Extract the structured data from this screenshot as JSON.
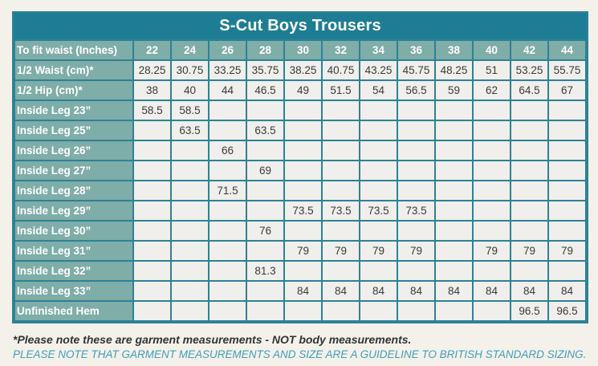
{
  "colors": {
    "page_background": "#f3f1ea",
    "title_bar_background": "#1e7d94",
    "header_cell_background": "#7fada7",
    "value_cell_background": "#f0efeb",
    "border": "#2e8197",
    "header_text": "#ffffff",
    "value_text": "#3a3a3a",
    "note_primary_text": "#333333",
    "note_secondary_text": "#3f9eba"
  },
  "chart_data": {
    "type": "table",
    "title": "S-Cut Boys Trousers",
    "header": {
      "label": "To fit waist (Inches)",
      "sizes": [
        "22",
        "24",
        "26",
        "28",
        "30",
        "32",
        "34",
        "36",
        "38",
        "40",
        "42",
        "44"
      ]
    },
    "rows": [
      {
        "label": "1/2 Waist (cm)*",
        "values": [
          "28.25",
          "30.75",
          "33.25",
          "35.75",
          "38.25",
          "40.75",
          "43.25",
          "45.75",
          "48.25",
          "51",
          "53.25",
          "55.75"
        ]
      },
      {
        "label": "1/2 Hip (cm)*",
        "values": [
          "38",
          "40",
          "44",
          "46.5",
          "49",
          "51.5",
          "54",
          "56.5",
          "59",
          "62",
          "64.5",
          "67"
        ]
      },
      {
        "label": "Inside Leg 23”",
        "values": [
          "58.5",
          "58.5",
          "",
          "",
          "",
          "",
          "",
          "",
          "",
          "",
          "",
          ""
        ]
      },
      {
        "label": "Inside Leg 25”",
        "values": [
          "",
          "63.5",
          "",
          "63.5",
          "",
          "",
          "",
          "",
          "",
          "",
          "",
          ""
        ]
      },
      {
        "label": "Inside Leg 26”",
        "values": [
          "",
          "",
          "66",
          "",
          "",
          "",
          "",
          "",
          "",
          "",
          "",
          ""
        ]
      },
      {
        "label": "Inside Leg 27”",
        "values": [
          "",
          "",
          "",
          "69",
          "",
          "",
          "",
          "",
          "",
          "",
          "",
          ""
        ]
      },
      {
        "label": "Inside Leg 28”",
        "values": [
          "",
          "",
          "71.5",
          "",
          "",
          "",
          "",
          "",
          "",
          "",
          "",
          ""
        ]
      },
      {
        "label": "Inside Leg 29”",
        "values": [
          "",
          "",
          "",
          "",
          "73.5",
          "73.5",
          "73.5",
          "73.5",
          "",
          "",
          "",
          ""
        ]
      },
      {
        "label": "Inside Leg 30”",
        "values": [
          "",
          "",
          "",
          "76",
          "",
          "",
          "",
          "",
          "",
          "",
          "",
          ""
        ]
      },
      {
        "label": "Inside Leg 31”",
        "values": [
          "",
          "",
          "",
          "",
          "79",
          "79",
          "79",
          "79",
          "",
          "79",
          "79",
          "79"
        ]
      },
      {
        "label": "Inside Leg 32”",
        "values": [
          "",
          "",
          "",
          "81.3",
          "",
          "",
          "",
          "",
          "",
          "",
          "",
          ""
        ]
      },
      {
        "label": "Inside Leg 33”",
        "values": [
          "",
          "",
          "",
          "",
          "84",
          "84",
          "84",
          "84",
          "84",
          "84",
          "84",
          "84"
        ]
      },
      {
        "label": "Unfinished Hem",
        "values": [
          "",
          "",
          "",
          "",
          "",
          "",
          "",
          "",
          "",
          "",
          "96.5",
          "96.5"
        ]
      }
    ]
  },
  "footnotes": {
    "primary": "*Please note these are garment measurements - NOT body measurements.",
    "secondary": "PLEASE NOTE THAT GARMENT MEASUREMENTS AND SIZE ARE A GUIDELINE TO BRITISH STANDARD SIZING."
  }
}
